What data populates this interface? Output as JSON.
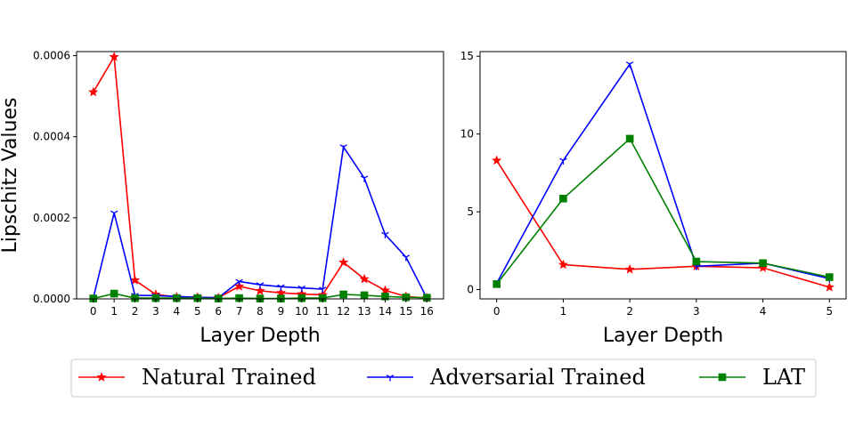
{
  "figure": {
    "ylabel": "Lipschitz Values",
    "legend": {
      "placement": "bottom-center",
      "entries": [
        {
          "name": "Natural Trained",
          "color": "#ff0000",
          "marker": "star"
        },
        {
          "name": "Adversarial Trained",
          "color": "#0000ff",
          "marker": "tri"
        },
        {
          "name": "LAT",
          "color": "#008000",
          "marker": "square"
        }
      ]
    }
  },
  "chart_data": [
    {
      "type": "line",
      "xlabel": "Layer Depth",
      "ylabel": "Lipschitz Values",
      "x": [
        0,
        1,
        2,
        3,
        4,
        5,
        6,
        7,
        8,
        9,
        10,
        11,
        12,
        13,
        14,
        15,
        16
      ],
      "xlim": [
        -0.8,
        16.8
      ],
      "ylim": [
        0,
        0.00061
      ],
      "yticks": [
        0,
        0.0002,
        0.0004,
        0.0006
      ],
      "ytick_labels": [
        "0.0000",
        "0.0002",
        "0.0004",
        "0.0006"
      ],
      "xtick_labels": [
        "0",
        "1",
        "2",
        "3",
        "4",
        "5",
        "6",
        "7",
        "8",
        "9",
        "10",
        "11",
        "12",
        "13",
        "14",
        "15",
        "16"
      ],
      "grid": false,
      "series": [
        {
          "name": "Natural Trained",
          "color": "#ff0000",
          "marker": "star",
          "values": [
            0.00051,
            0.000597,
            4.6e-05,
            1.1e-05,
            5e-06,
            4e-06,
            3e-06,
            3.1e-05,
            2e-05,
            1.5e-05,
            1.2e-05,
            1e-05,
            9e-05,
            4.9e-05,
            2.1e-05,
            6e-06,
            2e-06
          ]
        },
        {
          "name": "Adversarial Trained",
          "color": "#0000ff",
          "marker": "tri",
          "values": [
            2e-06,
            0.000212,
            9e-06,
            8e-06,
            6e-06,
            4e-06,
            3e-06,
            4.3e-05,
            3.5e-05,
            3e-05,
            2.7e-05,
            2.4e-05,
            0.000375,
            0.000298,
            0.000159,
            0.000103,
            2e-06
          ]
        },
        {
          "name": "LAT",
          "color": "#008000",
          "marker": "square",
          "values": [
            1e-06,
            1.3e-05,
            2e-06,
            2e-06,
            2e-06,
            2e-06,
            1e-06,
            2e-06,
            1e-06,
            1e-06,
            2e-06,
            2e-06,
            1.1e-05,
            9e-06,
            6e-06,
            4e-06,
            3e-06
          ]
        }
      ]
    },
    {
      "type": "line",
      "xlabel": "Layer Depth",
      "x": [
        0,
        1,
        2,
        3,
        4,
        5
      ],
      "xlim": [
        -0.25,
        5.25
      ],
      "ylim": [
        -0.6,
        15.3
      ],
      "yticks": [
        0,
        5,
        10,
        15
      ],
      "ytick_labels": [
        "0",
        "5",
        "10",
        "15"
      ],
      "xtick_labels": [
        "0",
        "1",
        "2",
        "3",
        "4",
        "5"
      ],
      "grid": false,
      "series": [
        {
          "name": "Natural Trained",
          "color": "#ff0000",
          "marker": "star",
          "values": [
            8.3,
            1.6,
            1.3,
            1.5,
            1.4,
            0.15
          ]
        },
        {
          "name": "Adversarial Trained",
          "color": "#0000ff",
          "marker": "tri",
          "values": [
            0.4,
            8.3,
            14.5,
            1.5,
            1.7,
            0.7
          ]
        },
        {
          "name": "LAT",
          "color": "#008000",
          "marker": "square",
          "values": [
            0.35,
            5.85,
            9.7,
            1.8,
            1.7,
            0.8
          ]
        }
      ]
    }
  ]
}
